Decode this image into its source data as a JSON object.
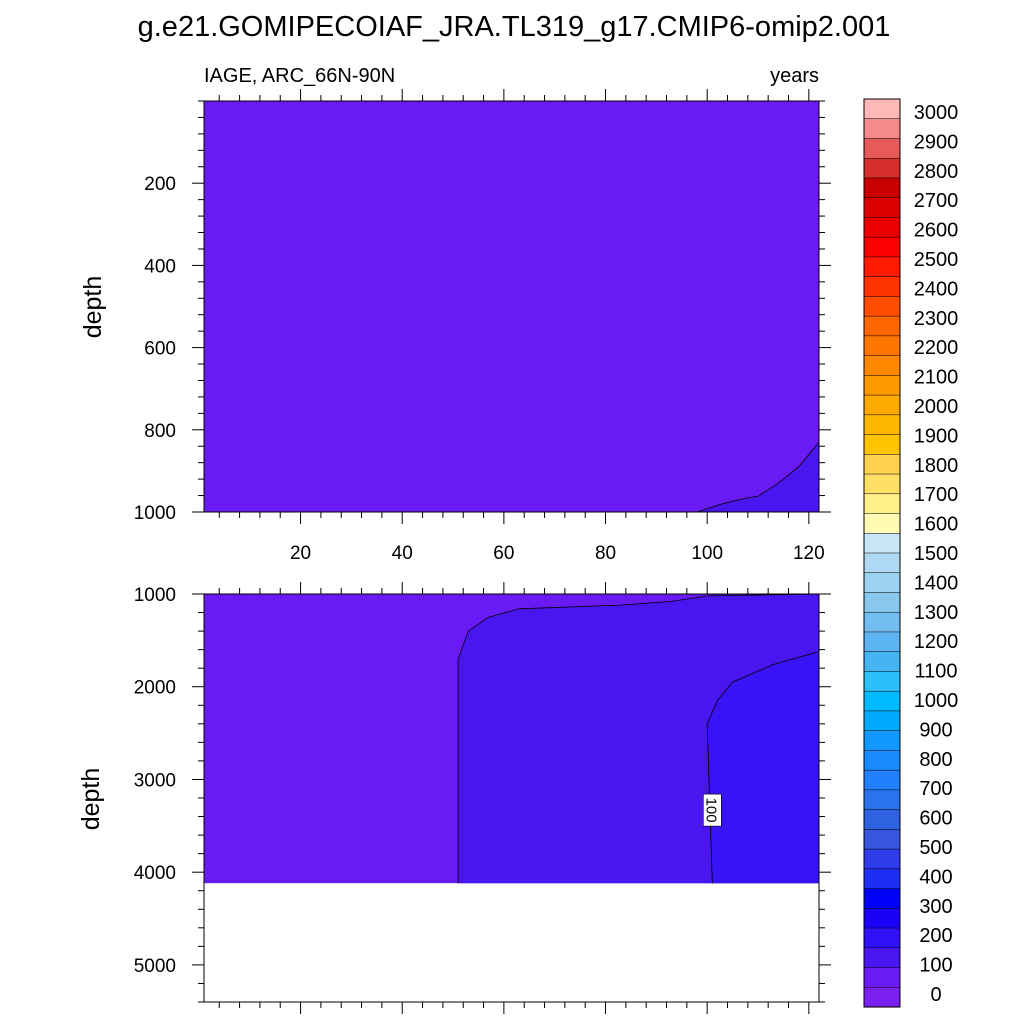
{
  "chart_data": {
    "type": "contour",
    "title": "g.e21.GOMIPECOIAF_JRA.TL319_g17.CMIP6-omip2.001",
    "subtitle_left": "IAGE, ARC_66N-90N",
    "subtitle_right": "years",
    "colors": {
      "band_0_50": "#6a1bf4",
      "band_50_100": "#4a16f0",
      "band_100_150": "#3a12f6",
      "missing": "#ffffff",
      "contour_line": "#000000"
    },
    "top_panel": {
      "ylabel": "depth",
      "ylim": [
        0,
        1000
      ],
      "yticks": [
        "200",
        "400",
        "600",
        "800",
        "1000"
      ],
      "xlim": [
        1,
        122
      ],
      "xticks": [
        "20",
        "40",
        "60",
        "80",
        "100",
        "120"
      ],
      "contours": [
        {
          "level": 50,
          "points": [
            [
              98,
              1000
            ],
            [
              103,
              980
            ],
            [
              108,
              965
            ],
            [
              110,
              962
            ],
            [
              114,
              930
            ],
            [
              118,
              890
            ],
            [
              122,
              830
            ]
          ]
        }
      ]
    },
    "bottom_panel": {
      "ylabel": "depth",
      "ylim": [
        1000,
        5400
      ],
      "yticks": [
        "1000",
        "2000",
        "3000",
        "4000",
        "5000"
      ],
      "xlim": [
        1,
        122
      ],
      "data_floor_depth": 4120,
      "contours": [
        {
          "level": 50,
          "points": [
            [
              51,
              4120
            ],
            [
              51,
              1700
            ],
            [
              53,
              1400
            ],
            [
              57,
              1250
            ],
            [
              63,
              1160
            ],
            [
              83,
              1120
            ],
            [
              93,
              1080
            ],
            [
              100,
              1020
            ],
            [
              122,
              1000
            ]
          ]
        },
        {
          "level": 100,
          "label": "100",
          "label_at": [
            101,
            3330
          ],
          "points": [
            [
              101,
              4120
            ],
            [
              100,
              2400
            ],
            [
              102,
              2150
            ],
            [
              105,
              1950
            ],
            [
              113,
              1760
            ],
            [
              122,
              1620
            ]
          ]
        }
      ]
    },
    "colorbar": {
      "labels": [
        "3000",
        "2900",
        "2800",
        "2700",
        "2600",
        "2500",
        "2400",
        "2300",
        "2200",
        "2100",
        "2000",
        "1900",
        "1800",
        "1700",
        "1600",
        "1500",
        "1400",
        "1300",
        "1200",
        "1100",
        "1000",
        "900",
        "800",
        "700",
        "600",
        "500",
        "400",
        "300",
        "200",
        "100",
        "0"
      ],
      "colors": [
        "#ffb8b8",
        "#f58a8a",
        "#e65a5a",
        "#d42e2e",
        "#c80000",
        "#dd0000",
        "#ee0000",
        "#ff0000",
        "#ff1a00",
        "#ff3300",
        "#ff4d00",
        "#ff6600",
        "#ff7700",
        "#ff8800",
        "#ff9900",
        "#ffaa00",
        "#ffb700",
        "#ffc400",
        "#ffd24d",
        "#ffe066",
        "#fff08a",
        "#fffab4",
        "#c8e6f8",
        "#b0daf3",
        "#9cd2f0",
        "#88c8ed",
        "#72bef0",
        "#5cb5f0",
        "#45b5f2",
        "#2cc0fa",
        "#00bbff",
        "#00aaff",
        "#1199ff",
        "#1a8cff",
        "#2080ff",
        "#2a72ee",
        "#2f62e0",
        "#3a55dd",
        "#2f3ceb",
        "#1f2ef5",
        "#0000ff",
        "#1a00f5",
        "#3010f6",
        "#4a16f0",
        "#6a1bf4",
        "#7a20f0"
      ]
    }
  }
}
